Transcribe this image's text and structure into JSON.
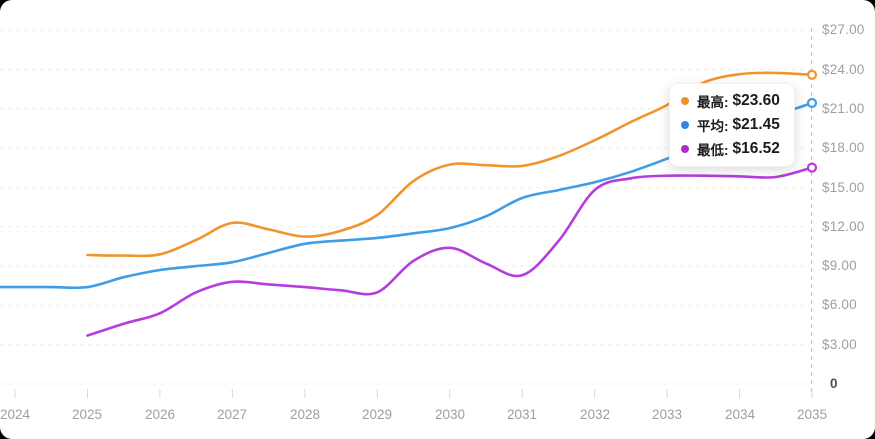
{
  "tooltip": {
    "rows": [
      {
        "key": "highest",
        "label": "最高:",
        "value": "$23.60",
        "color": "#F0902B"
      },
      {
        "key": "average",
        "label": "平均:",
        "value": "$21.45",
        "color": "#2E86E8"
      },
      {
        "key": "lowest",
        "label": "最低:",
        "value": "$16.52",
        "color": "#AC2CCC"
      }
    ]
  },
  "chart_data": {
    "type": "line",
    "title": "",
    "xlabel": "",
    "ylabel": "",
    "categories": [
      2024,
      2025,
      2026,
      2027,
      2028,
      2029,
      2030,
      2031,
      2032,
      2033,
      2034,
      2035
    ],
    "y_ticks": [
      {
        "value": 27,
        "label": "$27.00"
      },
      {
        "value": 24,
        "label": "$24.00"
      },
      {
        "value": 21,
        "label": "$21.00"
      },
      {
        "value": 18,
        "label": "$18.00"
      },
      {
        "value": 15,
        "label": "$15.00"
      },
      {
        "value": 12,
        "label": "$12.00"
      },
      {
        "value": 9,
        "label": "$9.00"
      },
      {
        "value": 6,
        "label": "$6.00"
      },
      {
        "value": 3,
        "label": "$3.00"
      },
      {
        "value": 0,
        "label": "0"
      }
    ],
    "ylim": [
      0,
      28
    ],
    "xlim": [
      2023.8,
      2035
    ],
    "grid": "horizontal-dashed",
    "y_axis_side": "right",
    "legend_position": "floating-tooltip",
    "series": [
      {
        "key": "highest",
        "name": "最高",
        "color": "#F0952E",
        "final_value": 23.6,
        "x": [
          2025,
          2025.5,
          2026,
          2026.5,
          2027,
          2027.5,
          2028,
          2028.5,
          2029,
          2029.5,
          2030,
          2030.5,
          2031,
          2031.5,
          2032,
          2032.5,
          2033,
          2033.5,
          2034,
          2034.5,
          2035
        ],
        "values": [
          9.85,
          9.8,
          9.9,
          11.0,
          12.3,
          11.8,
          11.25,
          11.7,
          12.9,
          15.5,
          16.75,
          16.7,
          16.65,
          17.4,
          18.6,
          20.0,
          21.3,
          23.0,
          23.65,
          23.75,
          23.6
        ]
      },
      {
        "key": "average",
        "name": "平均",
        "color": "#3E9DE5",
        "final_value": 21.45,
        "x": [
          2023.8,
          2024,
          2024.5,
          2025,
          2025.5,
          2026,
          2026.5,
          2027,
          2027.5,
          2028,
          2028.5,
          2029,
          2029.5,
          2030,
          2030.5,
          2031,
          2031.5,
          2032,
          2032.5,
          2033,
          2033.5,
          2034,
          2034.5,
          2035
        ],
        "values": [
          7.4,
          7.4,
          7.4,
          7.4,
          8.15,
          8.7,
          9.0,
          9.3,
          10.0,
          10.7,
          10.95,
          11.15,
          11.5,
          11.9,
          12.8,
          14.2,
          14.8,
          15.4,
          16.2,
          17.2,
          18.3,
          19.5,
          20.5,
          21.45
        ]
      },
      {
        "key": "lowest",
        "name": "最低",
        "color": "#B53CDE",
        "final_value": 16.52,
        "x": [
          2025,
          2025.5,
          2026,
          2026.5,
          2027,
          2027.5,
          2028,
          2028.5,
          2029,
          2029.5,
          2030,
          2030.5,
          2031,
          2031.5,
          2032,
          2032.5,
          2033,
          2033.5,
          2034,
          2034.5,
          2035
        ],
        "values": [
          3.7,
          4.6,
          5.4,
          7.0,
          7.8,
          7.6,
          7.4,
          7.15,
          7.0,
          9.4,
          10.4,
          9.2,
          8.3,
          10.9,
          14.8,
          15.7,
          15.9,
          15.9,
          15.85,
          15.8,
          16.52
        ]
      }
    ],
    "colors": {
      "grid": "#ededef",
      "axis_dashed_line": "#bfc3ca",
      "tick": "#d9d9dc",
      "axis_label": "#9aa0a8",
      "zero_label": "#4a4f57",
      "tooltip_text": "#1b1c20",
      "card_background": "#ffffff",
      "page_background": "#000000"
    }
  }
}
